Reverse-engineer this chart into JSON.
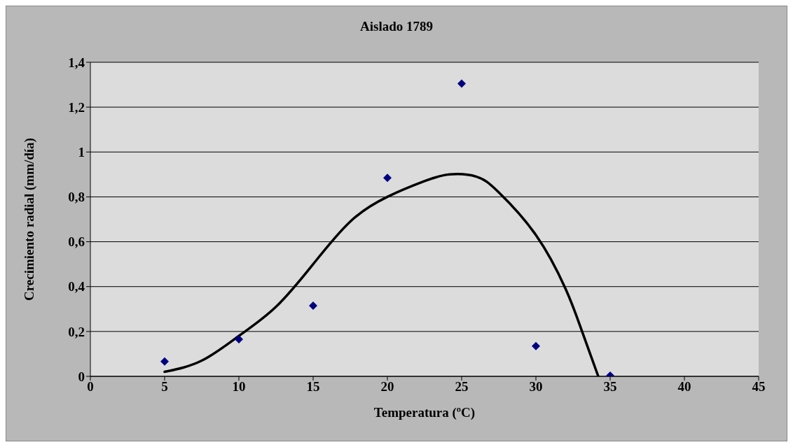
{
  "chart_data": {
    "type": "scatter",
    "title": "Aislado 1789",
    "xlabel": "Temperatura (ºC)",
    "ylabel": "Crecimiento radial (mm/día)",
    "xlim": [
      0,
      45
    ],
    "xticks": [
      0,
      5,
      10,
      15,
      20,
      25,
      30,
      35,
      40,
      45
    ],
    "ylim": [
      0,
      1.4
    ],
    "yticks": [
      0,
      {
        "value": 0.2,
        "label": "0,2"
      },
      {
        "value": 0.4,
        "label": "0,4"
      },
      {
        "value": 0.6,
        "label": "0,6"
      },
      {
        "value": 0.8,
        "label": "0,8"
      },
      1,
      {
        "value": 1.2,
        "label": "1,2"
      },
      {
        "value": 1.4,
        "label": "1,4"
      }
    ],
    "grid": "y",
    "legend": false,
    "series": [
      {
        "color": "#000080",
        "marker": "diamond",
        "x": [
          5,
          10,
          15,
          20,
          25,
          30,
          35
        ],
        "values": [
          0.066,
          0.165,
          0.315,
          0.885,
          1.305,
          0.135,
          0.003
        ]
      },
      {
        "type": "line",
        "color": "#000000",
        "marker": "none",
        "line_style": "solid",
        "x": [
          5,
          7.5,
          10,
          12.5,
          15,
          17.5,
          20,
          22.5,
          24.2,
          26,
          27.5,
          30,
          32,
          33,
          34.2
        ],
        "values": [
          0.02,
          0.07,
          0.18,
          0.31,
          0.5,
          0.69,
          0.8,
          0.87,
          0.9,
          0.89,
          0.82,
          0.63,
          0.39,
          0.22,
          0
        ]
      }
    ]
  }
}
